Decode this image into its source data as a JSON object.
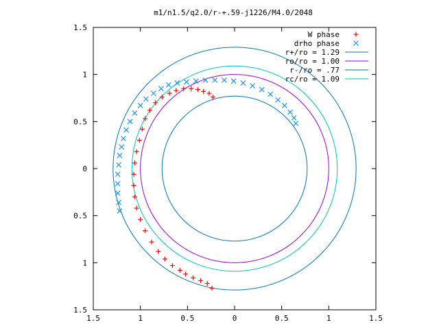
{
  "chart_data": {
    "type": "scatter",
    "title": "m1/n1.5/q2.0/r-+.59-j1226/M4.0/2048",
    "xlim": [
      1.5,
      -1.5
    ],
    "ylim": [
      -1.5,
      1.5
    ],
    "x_ticks": [
      {
        "value": 1.5,
        "label": "1.5"
      },
      {
        "value": 1.0,
        "label": "1"
      },
      {
        "value": 0.5,
        "label": "0.5"
      },
      {
        "value": 0.0,
        "label": "0"
      },
      {
        "value": -0.5,
        "label": "0.5"
      },
      {
        "value": -1.0,
        "label": "1"
      },
      {
        "value": -1.5,
        "label": "1.5"
      }
    ],
    "y_ticks": [
      {
        "value": 1.5,
        "label": "1.5"
      },
      {
        "value": 1.0,
        "label": "1"
      },
      {
        "value": 0.5,
        "label": "0.5"
      },
      {
        "value": 0.0,
        "label": "0"
      },
      {
        "value": -0.5,
        "label": "0.5"
      },
      {
        "value": -1.0,
        "label": "1"
      },
      {
        "value": -1.5,
        "label": "1.5"
      }
    ],
    "grid": false,
    "legend_position": "top-right",
    "series": [
      {
        "name": "W phase",
        "kind": "points",
        "marker": "plus",
        "color": "#ff0000",
        "points": [
          [
            0.24,
            -1.27
          ],
          [
            0.29,
            -1.22
          ],
          [
            0.36,
            -1.19
          ],
          [
            0.44,
            -1.16
          ],
          [
            0.52,
            -1.12
          ],
          [
            0.58,
            -1.08
          ],
          [
            0.66,
            -1.03
          ],
          [
            0.74,
            -0.96
          ],
          [
            0.81,
            -0.88
          ],
          [
            0.88,
            -0.78
          ],
          [
            0.95,
            -0.66
          ],
          [
            1.0,
            -0.54
          ],
          [
            1.04,
            -0.42
          ],
          [
            1.06,
            -0.3
          ],
          [
            1.07,
            -0.18
          ],
          [
            1.07,
            -0.06
          ],
          [
            1.06,
            0.06
          ],
          [
            1.04,
            0.18
          ],
          [
            1.01,
            0.3
          ],
          [
            0.98,
            0.42
          ],
          [
            0.95,
            0.53
          ],
          [
            0.9,
            0.62
          ],
          [
            0.84,
            0.7
          ],
          [
            0.77,
            0.76
          ],
          [
            0.69,
            0.8
          ],
          [
            0.62,
            0.83
          ],
          [
            0.54,
            0.85
          ],
          [
            0.46,
            0.85
          ],
          [
            0.39,
            0.84
          ],
          [
            0.33,
            0.82
          ],
          [
            0.27,
            0.8
          ],
          [
            0.23,
            0.76
          ]
        ]
      },
      {
        "name": "drho phase",
        "kind": "points",
        "marker": "cross",
        "color": "#1e90ff",
        "points": [
          [
            1.22,
            -0.45
          ],
          [
            1.23,
            -0.36
          ],
          [
            1.24,
            -0.26
          ],
          [
            1.24,
            -0.16
          ],
          [
            1.24,
            -0.06
          ],
          [
            1.23,
            0.04
          ],
          [
            1.22,
            0.14
          ],
          [
            1.2,
            0.23
          ],
          [
            1.18,
            0.32
          ],
          [
            1.15,
            0.41
          ],
          [
            1.11,
            0.5
          ],
          [
            1.06,
            0.59
          ],
          [
            1.0,
            0.67
          ],
          [
            0.94,
            0.74
          ],
          [
            0.86,
            0.8
          ],
          [
            0.78,
            0.85
          ],
          [
            0.7,
            0.89
          ],
          [
            0.61,
            0.91
          ],
          [
            0.51,
            0.92
          ],
          [
            0.41,
            0.93
          ],
          [
            0.31,
            0.94
          ],
          [
            0.21,
            0.94
          ],
          [
            0.11,
            0.94
          ],
          [
            0.01,
            0.93
          ],
          [
            -0.09,
            0.91
          ],
          [
            -0.19,
            0.88
          ],
          [
            -0.29,
            0.84
          ],
          [
            -0.38,
            0.79
          ],
          [
            -0.46,
            0.73
          ],
          [
            -0.53,
            0.67
          ],
          [
            -0.59,
            0.6
          ],
          [
            -0.63,
            0.54
          ],
          [
            -0.65,
            0.48
          ]
        ]
      },
      {
        "name": "r+/ro = 1.29",
        "kind": "circle",
        "radius": 1.29,
        "color": "#0072b2"
      },
      {
        "name": "ro/ro = 1.00",
        "kind": "circle",
        "radius": 1.0,
        "color": "#9400d3"
      },
      {
        "name": "r-/ro = .77",
        "kind": "circle",
        "radius": 0.77,
        "color": "#0072b2"
      },
      {
        "name": "rc/ro = 1.09",
        "kind": "circle",
        "radius": 1.09,
        "color": "#00c0c0"
      }
    ]
  }
}
